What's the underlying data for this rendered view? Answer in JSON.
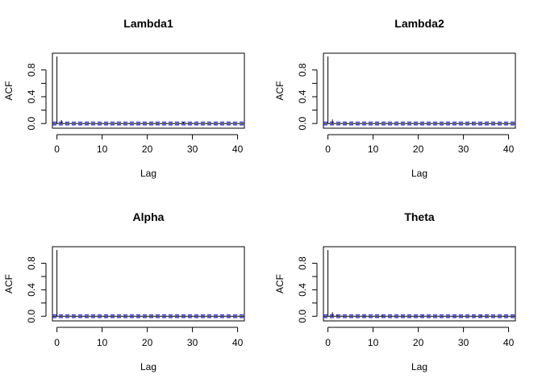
{
  "chart_data": [
    {
      "type": "bar",
      "title": "Lambda1",
      "xlabel": "Lag",
      "ylabel": "ACF",
      "xlim": [
        -1,
        41.5
      ],
      "ylim": [
        -0.07,
        1.05
      ],
      "xticks": [
        "0",
        "10",
        "20",
        "30",
        "40"
      ],
      "yticks": [
        "0.0",
        "0.4",
        "0.8"
      ],
      "ci": 0.02,
      "lags": [
        0,
        1,
        2,
        3,
        4,
        5,
        6,
        7,
        8,
        9,
        10,
        11,
        12,
        13,
        14,
        15,
        16,
        17,
        18,
        19,
        20,
        21,
        22,
        23,
        24,
        25,
        26,
        27,
        28,
        29,
        30,
        31,
        32,
        33,
        34,
        35,
        36,
        37,
        38,
        39,
        40
      ],
      "values": [
        1.0,
        0.05,
        0.01,
        0.0,
        0.005,
        -0.005,
        0.0,
        0.01,
        0.0,
        -0.005,
        0.005,
        0.0,
        0.0,
        0.01,
        0.0,
        -0.005,
        0.005,
        0.0,
        0.0,
        0.005,
        0.0,
        -0.005,
        0.01,
        0.0,
        0.005,
        0.0,
        0.0,
        0.005,
        0.025,
        0.0,
        0.005,
        0.0,
        0.0,
        0.005,
        0.0,
        0.0,
        0.005,
        0.0,
        0.0,
        0.005,
        0.0
      ]
    },
    {
      "type": "bar",
      "title": "Lambda2",
      "xlabel": "Lag",
      "ylabel": "ACF",
      "xlim": [
        -1,
        41.5
      ],
      "ylim": [
        -0.07,
        1.05
      ],
      "xticks": [
        "0",
        "10",
        "20",
        "30",
        "40"
      ],
      "yticks": [
        "0.0",
        "0.4",
        "0.8"
      ],
      "ci": 0.02,
      "lags": [
        0,
        1,
        2,
        3,
        4,
        5,
        6,
        7,
        8,
        9,
        10,
        11,
        12,
        13,
        14,
        15,
        16,
        17,
        18,
        19,
        20,
        21,
        22,
        23,
        24,
        25,
        26,
        27,
        28,
        29,
        30,
        31,
        32,
        33,
        34,
        35,
        36,
        37,
        38,
        39,
        40
      ],
      "values": [
        1.0,
        0.06,
        0.0,
        0.005,
        0.01,
        0.0,
        0.005,
        0.0,
        0.0,
        0.005,
        0.0,
        0.005,
        0.0,
        0.01,
        0.0,
        0.0,
        0.005,
        0.0,
        0.005,
        0.0,
        0.0,
        0.005,
        0.0,
        0.0,
        0.005,
        0.0,
        0.005,
        0.0,
        0.0,
        0.005,
        0.0,
        0.0,
        0.01,
        0.0,
        0.0,
        0.005,
        0.0,
        0.0,
        0.005,
        0.0,
        0.0
      ]
    },
    {
      "type": "bar",
      "title": "Alpha",
      "xlabel": "Lag",
      "ylabel": "ACF",
      "xlim": [
        -1,
        41.5
      ],
      "ylim": [
        -0.07,
        1.05
      ],
      "xticks": [
        "0",
        "10",
        "20",
        "30",
        "40"
      ],
      "yticks": [
        "0.0",
        "0.4",
        "0.8"
      ],
      "ci": 0.02,
      "lags": [
        0,
        1,
        2,
        3,
        4,
        5,
        6,
        7,
        8,
        9,
        10,
        11,
        12,
        13,
        14,
        15,
        16,
        17,
        18,
        19,
        20,
        21,
        22,
        23,
        24,
        25,
        26,
        27,
        28,
        29,
        30,
        31,
        32,
        33,
        34,
        35,
        36,
        37,
        38,
        39,
        40
      ],
      "values": [
        1.0,
        0.005,
        0.0,
        0.005,
        0.0,
        0.0,
        0.005,
        0.0,
        0.0,
        0.005,
        0.0,
        0.0,
        0.005,
        0.0,
        0.0,
        0.005,
        0.0,
        0.0,
        0.005,
        0.0,
        0.0,
        0.005,
        0.0,
        0.0,
        0.005,
        0.0,
        0.0,
        0.005,
        0.0,
        0.0,
        0.005,
        0.0,
        0.0,
        0.005,
        0.0,
        0.0,
        0.005,
        0.0,
        0.0,
        0.005,
        0.0
      ]
    },
    {
      "type": "bar",
      "title": "Theta",
      "xlabel": "Lag",
      "ylabel": "ACF",
      "xlim": [
        -1,
        41.5
      ],
      "ylim": [
        -0.07,
        1.05
      ],
      "xticks": [
        "0",
        "10",
        "20",
        "30",
        "40"
      ],
      "yticks": [
        "0.0",
        "0.4",
        "0.8"
      ],
      "ci": 0.02,
      "lags": [
        0,
        1,
        2,
        3,
        4,
        5,
        6,
        7,
        8,
        9,
        10,
        11,
        12,
        13,
        14,
        15,
        16,
        17,
        18,
        19,
        20,
        21,
        22,
        23,
        24,
        25,
        26,
        27,
        28,
        29,
        30,
        31,
        32,
        33,
        34,
        35,
        36,
        37,
        38,
        39,
        40
      ],
      "values": [
        1.0,
        0.06,
        0.025,
        0.01,
        0.005,
        0.0,
        0.005,
        0.0,
        0.01,
        0.0,
        0.005,
        0.0,
        0.015,
        0.0,
        0.005,
        0.0,
        0.0,
        0.005,
        0.0,
        0.0,
        0.005,
        0.01,
        0.0,
        0.005,
        0.0,
        0.0,
        0.005,
        0.0,
        0.0,
        0.005,
        0.0,
        0.0,
        0.005,
        0.0,
        0.02,
        0.0,
        0.005,
        0.0,
        0.0,
        0.005,
        0.0
      ]
    }
  ],
  "colors": {
    "axis": "#000000",
    "bars": "#000000",
    "ci": "#2222dd"
  }
}
